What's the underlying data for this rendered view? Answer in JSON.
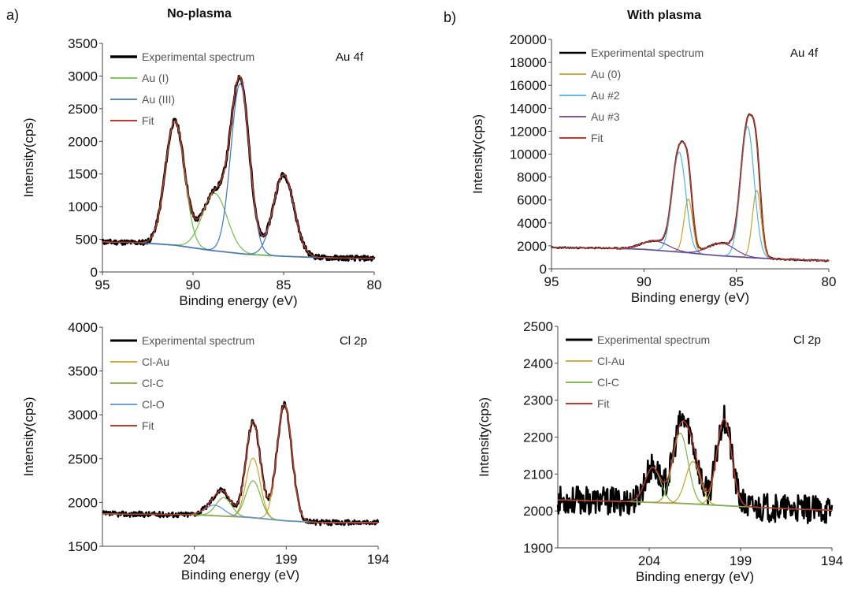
{
  "figure": {
    "panel_labels": [
      "a)",
      "b)"
    ],
    "column_titles": [
      "No-plasma",
      "With plasma"
    ]
  },
  "chart_data": [
    {
      "id": "a-au4f",
      "type": "line",
      "corner_label": "Au 4f",
      "xlabel": "Binding energy (eV)",
      "ylabel": "Intensity(cps)",
      "xlim": [
        95,
        80
      ],
      "ylim": [
        0,
        3500
      ],
      "xticks": [
        95,
        90,
        85,
        80
      ],
      "yticks": [
        0,
        500,
        1000,
        1500,
        2000,
        2500,
        3000,
        3500
      ],
      "background": {
        "x": [
          95,
          93,
          91,
          89,
          87,
          85,
          83,
          81,
          80
        ],
        "y": [
          460,
          450,
          410,
          330,
          270,
          240,
          220,
          210,
          210
        ],
        "color": "#aaaaaa"
      },
      "series": [
        {
          "name": "Experimental spectrum",
          "color": "#000000",
          "width": 3,
          "noise": 38,
          "seed": 11,
          "kind": "sum",
          "components": [
            0,
            1,
            2,
            3
          ]
        },
        {
          "name": "Au (I)",
          "color": "#6dbf4a",
          "width": 1.2,
          "kind": "peak",
          "peaks": [
            0,
            1
          ]
        },
        {
          "name": "Au (III)",
          "color": "#3f74c5",
          "width": 1.2,
          "kind": "peak",
          "peaks": [
            2,
            3
          ]
        },
        {
          "name": "Fit",
          "color": "#c0392b",
          "width": 1.4,
          "kind": "sum",
          "components": [
            0,
            1,
            2,
            3
          ]
        }
      ],
      "peaks": [
        {
          "center": 91.0,
          "height": 1900,
          "fwhm": 1.25
        },
        {
          "center": 88.8,
          "height": 880,
          "fwhm": 1.6
        },
        {
          "center": 87.4,
          "height": 2600,
          "fwhm": 1.2
        },
        {
          "center": 85.0,
          "height": 1250,
          "fwhm": 1.35
        }
      ]
    },
    {
      "id": "b-au4f",
      "type": "line",
      "corner_label": "Au 4f",
      "xlabel": "Binding energy (eV)",
      "ylabel": "Intensity(cps)",
      "xlim": [
        95,
        80
      ],
      "ylim": [
        0,
        20000
      ],
      "xticks": [
        95,
        90,
        85,
        80
      ],
      "yticks": [
        0,
        2000,
        4000,
        6000,
        8000,
        10000,
        12000,
        14000,
        16000,
        18000,
        20000
      ],
      "background": {
        "x": [
          95,
          92,
          90,
          88,
          86,
          84,
          82,
          80
        ],
        "y": [
          1850,
          1800,
          1700,
          1450,
          1150,
          950,
          800,
          700
        ],
        "color": "#aaaaaa"
      },
      "series": [
        {
          "name": "Experimental spectrum",
          "color": "#000000",
          "width": 2,
          "noise": 60,
          "seed": 23,
          "kind": "sum",
          "components": [
            0,
            1,
            2,
            3,
            4,
            5
          ]
        },
        {
          "name": "Au (0)",
          "color": "#c9a227",
          "width": 1.2,
          "kind": "peak",
          "peaks": [
            0,
            1
          ]
        },
        {
          "name": "Au #2",
          "color": "#4fb3e6",
          "width": 1.2,
          "kind": "peak",
          "peaks": [
            2,
            3
          ]
        },
        {
          "name": "Au #3",
          "color": "#6a3d9a",
          "width": 1.2,
          "kind": "peak",
          "peaks": [
            4,
            5
          ]
        },
        {
          "name": "Fit",
          "color": "#c0392b",
          "width": 1.4,
          "kind": "sum",
          "components": [
            0,
            1,
            2,
            3,
            4,
            5
          ]
        }
      ],
      "peaks": [
        {
          "center": 87.6,
          "height": 4700,
          "fwhm": 0.55
        },
        {
          "center": 83.9,
          "height": 5900,
          "fwhm": 0.55
        },
        {
          "center": 88.1,
          "height": 8700,
          "fwhm": 0.85
        },
        {
          "center": 84.4,
          "height": 11400,
          "fwhm": 0.85
        },
        {
          "center": 89.4,
          "height": 800,
          "fwhm": 1.7
        },
        {
          "center": 85.8,
          "height": 1100,
          "fwhm": 1.7
        }
      ]
    },
    {
      "id": "a-cl2p",
      "type": "line",
      "corner_label": "Cl 2p",
      "xlabel": "Binding energy (eV)",
      "ylabel": "Intensity(cps)",
      "xlim": [
        209,
        194
      ],
      "ylim": [
        1500,
        4000
      ],
      "xticks": [
        204,
        199,
        194
      ],
      "yticks": [
        1500,
        2000,
        2500,
        3000,
        3500,
        4000
      ],
      "background": {
        "x": [
          209,
          204,
          201,
          199,
          197,
          194
        ],
        "y": [
          1870,
          1860,
          1830,
          1790,
          1770,
          1770
        ],
        "color": "#aaaaaa"
      },
      "series": [
        {
          "name": "Experimental spectrum",
          "color": "#000000",
          "width": 2.5,
          "noise": 32,
          "seed": 37,
          "kind": "sum",
          "components": [
            0,
            1,
            2,
            3,
            4
          ]
        },
        {
          "name": "Cl-Au",
          "color": "#c9a227",
          "width": 1.2,
          "kind": "peak",
          "peaks": [
            0,
            1
          ]
        },
        {
          "name": "Cl-C",
          "color": "#7cb342",
          "width": 1.2,
          "kind": "peak",
          "peaks": [
            2,
            3
          ]
        },
        {
          "name": "Cl-O",
          "color": "#5b8fd6",
          "width": 1.2,
          "kind": "peak",
          "peaks": [
            4
          ]
        },
        {
          "name": "Fit",
          "color": "#c0392b",
          "width": 1.4,
          "kind": "sum",
          "components": [
            0,
            1,
            2,
            3,
            4
          ]
        }
      ],
      "peaks": [
        {
          "center": 200.8,
          "height": 680,
          "fwhm": 0.9
        },
        {
          "center": 199.1,
          "height": 1330,
          "fwhm": 0.95
        },
        {
          "center": 202.4,
          "height": 210,
          "fwhm": 1.0
        },
        {
          "center": 200.8,
          "height": 420,
          "fwhm": 0.95
        },
        {
          "center": 202.9,
          "height": 120,
          "fwhm": 1.2
        }
      ]
    },
    {
      "id": "b-cl2p",
      "type": "line",
      "corner_label": "Cl 2p",
      "xlabel": "Binding energy (eV)",
      "ylabel": "Intensity(cps)",
      "xlim": [
        209,
        194
      ],
      "ylim": [
        1900,
        2500
      ],
      "xticks": [
        204,
        199,
        194
      ],
      "yticks": [
        1900,
        2000,
        2100,
        2200,
        2300,
        2400,
        2500
      ],
      "background": {
        "x": [
          209,
          205,
          202,
          199,
          196,
          194
        ],
        "y": [
          2030,
          2025,
          2020,
          2012,
          2005,
          2002
        ],
        "color": "#aaaaaa"
      },
      "series": [
        {
          "name": "Experimental spectrum",
          "color": "#000000",
          "width": 2.5,
          "noise": 38,
          "seed": 53,
          "kind": "sum",
          "components": [
            0,
            1,
            2,
            3
          ]
        },
        {
          "name": "Cl-Au",
          "color": "#c9a227",
          "width": 1.2,
          "kind": "peak",
          "peaks": [
            0,
            1
          ]
        },
        {
          "name": "Cl-C",
          "color": "#7cb342",
          "width": 1.2,
          "kind": "peak",
          "peaks": [
            2,
            3
          ]
        },
        {
          "name": "Fit",
          "color": "#c0392b",
          "width": 1.4,
          "kind": "sum",
          "components": [
            0,
            1,
            2,
            3
          ]
        }
      ],
      "peaks": [
        {
          "center": 201.6,
          "height": 115,
          "fwhm": 0.95
        },
        {
          "center": 199.9,
          "height": 235,
          "fwhm": 0.95
        },
        {
          "center": 203.8,
          "height": 95,
          "fwhm": 1.0
        },
        {
          "center": 202.3,
          "height": 190,
          "fwhm": 1.0
        }
      ]
    }
  ]
}
